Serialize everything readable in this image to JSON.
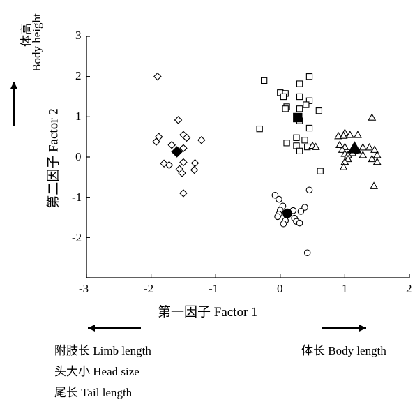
{
  "chart_data": {
    "type": "scatter",
    "xlabel": "第一因子  Factor 1",
    "ylabel": "第二因子  Factor 2",
    "xlim": [
      -3,
      2
    ],
    "ylim": [
      -3,
      3
    ],
    "xticks": [
      "-3",
      "-2",
      "-1",
      "0",
      "1",
      "2"
    ],
    "yticks": [
      "3",
      "2",
      "1",
      "0",
      "-1",
      "-2"
    ],
    "grid": false,
    "series": [
      {
        "marker": "diamond",
        "points": [
          [
            -1.9,
            2.0
          ],
          [
            -1.58,
            0.92
          ],
          [
            -1.88,
            0.5
          ],
          [
            -1.92,
            0.38
          ],
          [
            -1.5,
            0.55
          ],
          [
            -1.45,
            0.48
          ],
          [
            -1.22,
            0.42
          ],
          [
            -1.68,
            0.3
          ],
          [
            -1.5,
            0.22
          ],
          [
            -1.8,
            -0.16
          ],
          [
            -1.5,
            -0.13
          ],
          [
            -1.72,
            -0.2
          ],
          [
            -1.32,
            -0.15
          ],
          [
            -1.56,
            -0.3
          ],
          [
            -1.33,
            -0.32
          ],
          [
            -1.52,
            -0.4
          ],
          [
            -1.5,
            -0.9
          ]
        ],
        "centroid": [
          -1.6,
          0.13
        ]
      },
      {
        "marker": "square",
        "points": [
          [
            -0.25,
            1.9
          ],
          [
            0.45,
            2.0
          ],
          [
            0.3,
            1.82
          ],
          [
            0.0,
            1.6
          ],
          [
            0.08,
            1.58
          ],
          [
            0.05,
            1.5
          ],
          [
            0.3,
            1.5
          ],
          [
            0.45,
            1.4
          ],
          [
            0.4,
            1.3
          ],
          [
            0.1,
            1.25
          ],
          [
            0.3,
            1.2
          ],
          [
            0.08,
            1.2
          ],
          [
            0.6,
            1.15
          ],
          [
            0.3,
            0.9
          ],
          [
            -0.32,
            0.7
          ],
          [
            0.45,
            0.72
          ],
          [
            0.25,
            0.48
          ],
          [
            0.38,
            0.42
          ],
          [
            0.1,
            0.35
          ],
          [
            0.25,
            0.28
          ],
          [
            0.42,
            0.25
          ],
          [
            0.3,
            0.15
          ],
          [
            0.62,
            -0.35
          ]
        ],
        "centroid": [
          0.27,
          0.98
        ]
      },
      {
        "marker": "circle",
        "points": [
          [
            0.45,
            -0.82
          ],
          [
            -0.08,
            -0.95
          ],
          [
            -0.02,
            -1.05
          ],
          [
            0.38,
            -1.25
          ],
          [
            0.04,
            -1.22
          ],
          [
            0.0,
            -1.32
          ],
          [
            0.2,
            -1.33
          ],
          [
            0.32,
            -1.35
          ],
          [
            -0.02,
            -1.42
          ],
          [
            0.1,
            -1.45
          ],
          [
            -0.04,
            -1.48
          ],
          [
            0.22,
            -1.52
          ],
          [
            0.08,
            -1.58
          ],
          [
            0.25,
            -1.6
          ],
          [
            0.3,
            -1.64
          ],
          [
            0.05,
            -1.66
          ],
          [
            0.42,
            -2.38
          ]
        ],
        "centroid": [
          0.11,
          -1.4
        ]
      },
      {
        "marker": "triangle",
        "points": [
          [
            1.0,
            0.6
          ],
          [
            0.9,
            0.52
          ],
          [
            0.98,
            0.53
          ],
          [
            1.08,
            0.55
          ],
          [
            1.2,
            0.55
          ],
          [
            1.42,
            0.98
          ],
          [
            1.38,
            0.24
          ],
          [
            1.28,
            0.24
          ],
          [
            0.92,
            0.3
          ],
          [
            1.0,
            0.25
          ],
          [
            0.96,
            0.18
          ],
          [
            1.15,
            0.15
          ],
          [
            1.12,
            0.1
          ],
          [
            1.0,
            0.08
          ],
          [
            1.05,
            0.05
          ],
          [
            1.28,
            0.05
          ],
          [
            1.46,
            0.18
          ],
          [
            1.5,
            0.05
          ],
          [
            1.5,
            -0.12
          ],
          [
            1.42,
            -0.05
          ],
          [
            1.05,
            -0.05
          ],
          [
            1.0,
            -0.12
          ],
          [
            0.98,
            -0.25
          ],
          [
            1.45,
            -0.72
          ],
          [
            0.5,
            0.28
          ],
          [
            0.55,
            0.25
          ]
        ],
        "centroid": [
          1.15,
          0.22
        ]
      }
    ],
    "side_labels": {
      "y_top": [
        "体高",
        "Body height"
      ],
      "x_right": "体长  Body length",
      "x_left": [
        "附肢长 Limb length",
        "头大小 Head size",
        "尾长 Tail length"
      ]
    }
  }
}
